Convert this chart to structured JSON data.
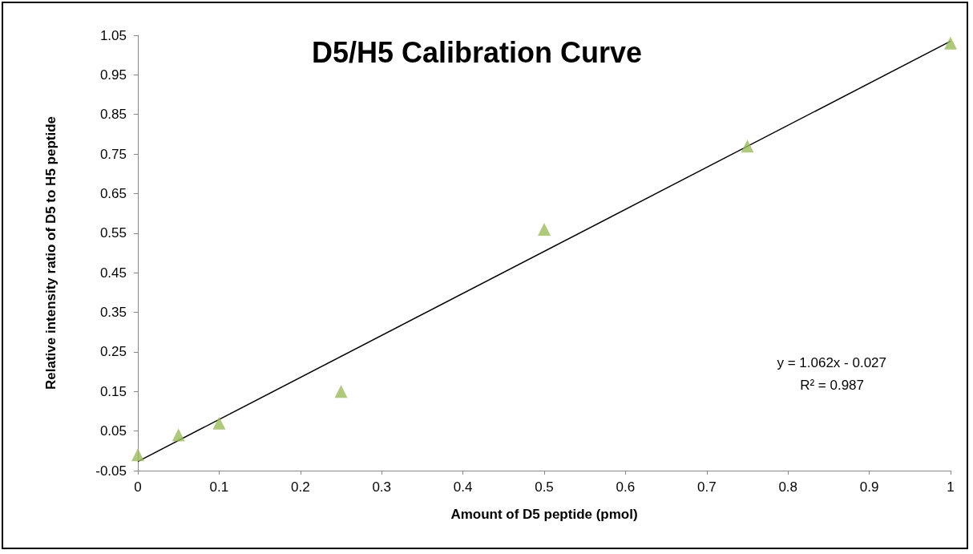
{
  "chart_data": {
    "type": "scatter",
    "title": "D5/H5 Calibration Curve",
    "xlabel": "Amount of D5 peptide (pmol)",
    "ylabel": "Relative intensity ratio of D5 to H5 peptide",
    "series": [
      {
        "color": "#9bbb59",
        "marker": "triangle",
        "x": [
          0,
          0.05,
          0.1,
          0.25,
          0.5,
          0.75,
          1
        ],
        "values": [
          -0.01,
          0.04,
          0.07,
          0.15,
          0.56,
          0.77,
          1.03
        ]
      },
      {
        "type": "line",
        "color": "#000000",
        "marker": "none",
        "line_style": "solid",
        "x": [
          0,
          1
        ],
        "values": [
          -0.027,
          1.035
        ]
      }
    ],
    "xlim": [
      0,
      1
    ],
    "xticks": [
      0,
      0.1,
      0.2,
      0.3,
      0.4,
      0.5,
      0.6,
      0.7,
      0.8,
      0.9,
      1
    ],
    "ylim": [
      -0.05,
      1.05
    ],
    "yticks": [
      -0.05,
      0.05,
      0.15,
      0.25,
      0.35,
      0.45,
      0.55,
      0.65,
      0.75,
      0.85,
      0.95,
      1.05
    ],
    "grid": false,
    "annotations": [
      "y = 1.062x - 0.027",
      "R² = 0.987"
    ]
  }
}
